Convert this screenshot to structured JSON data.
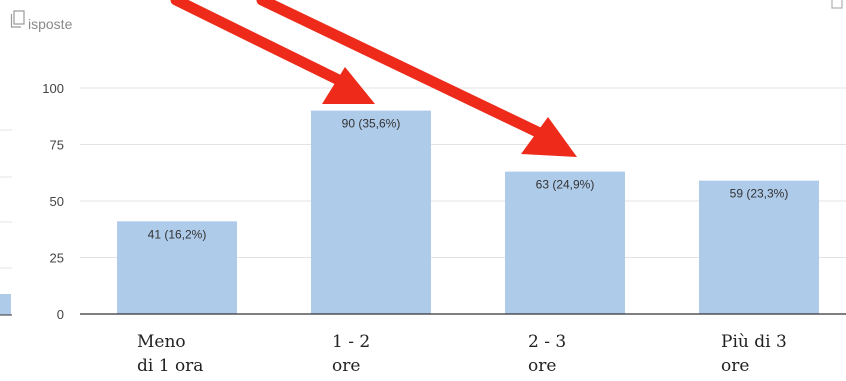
{
  "header": {
    "title_fragment": "isposte",
    "icon": "copy-icon"
  },
  "chart_data": {
    "type": "bar",
    "categories": [
      [
        "Meno",
        "di 1 ora"
      ],
      [
        "1 - 2",
        "ore"
      ],
      [
        "2 - 3",
        "ore"
      ],
      [
        "Più di 3",
        "ore"
      ]
    ],
    "values": [
      41,
      90,
      63,
      59
    ],
    "labels": [
      "41 (16,2%)",
      "90 (35,6%)",
      "63 (24,9%)",
      "59 (23,3%)"
    ],
    "yticks": [
      "0",
      "25",
      "50",
      "75",
      "100"
    ],
    "ylim": [
      0,
      100
    ],
    "grid": true,
    "bar_color": "#aecbea",
    "arrow_color": "#ee2a1a",
    "arrow_targets": [
      "1 - 2 ore",
      "2 - 3 ore"
    ]
  }
}
